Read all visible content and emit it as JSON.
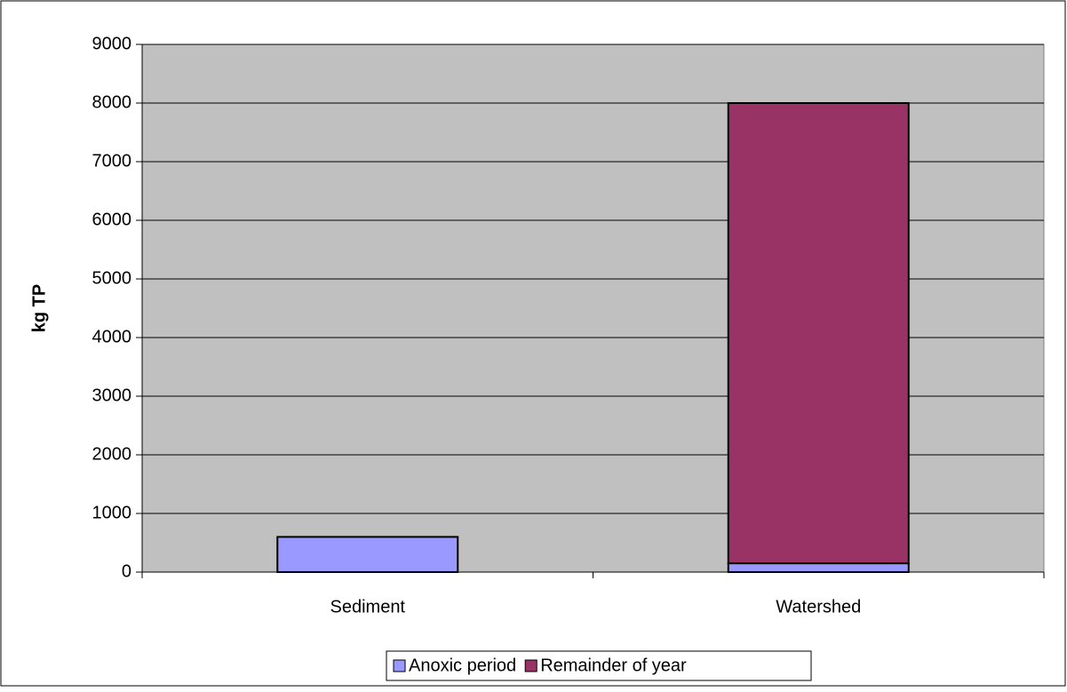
{
  "chart_data": {
    "type": "stacked_bar",
    "y_label": "kg TP",
    "categories": [
      "Sediment",
      "Watershed"
    ],
    "series": [
      {
        "name": "Anoxic period",
        "color": "#9999ff",
        "values": [
          600,
          150
        ]
      },
      {
        "name": "Remainder of year",
        "color": "#993366",
        "values": [
          0,
          7850
        ]
      }
    ],
    "ylim": [
      0,
      9000
    ],
    "yticks": [
      0,
      1000,
      2000,
      3000,
      4000,
      5000,
      6000,
      7000,
      8000,
      9000
    ],
    "grid": true,
    "legend": "bottom"
  }
}
